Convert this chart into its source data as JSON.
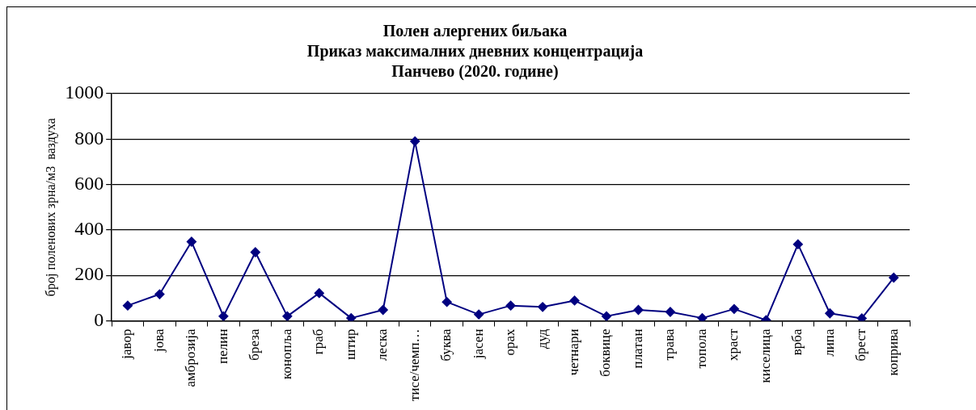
{
  "chart_data": {
    "type": "line",
    "title": "Полен алергених биљака\nПриказ максималних дневних концентрација\nПанчево (2020. године)",
    "ylabel": "број поленових зрна/м3  ваздуха",
    "categories": [
      "јавор",
      "јова",
      "амброзија",
      "пелин",
      "бреза",
      "конопља",
      "граб",
      "штир",
      "леска",
      "тисе/чемп…",
      "буква",
      "јасен",
      "орах",
      "дуд",
      "четнари",
      "боквице",
      "платан",
      "трава",
      "топола",
      "храст",
      "киселица",
      "врба",
      "липа",
      "брест",
      "коприва"
    ],
    "series": [
      {
        "color": "#000080",
        "values": [
          67,
          117,
          348,
          20,
          302,
          20,
          122,
          12,
          48,
          790,
          83,
          28,
          67,
          61,
          89,
          20,
          48,
          39,
          12,
          52,
          3,
          337,
          33,
          11,
          190
        ]
      }
    ],
    "ylim": [
      0,
      1000
    ],
    "yticks": [
      0,
      200,
      400,
      600,
      800,
      1000
    ],
    "grid": "y",
    "legend": false,
    "marker": "diamond",
    "line_style": "solid"
  }
}
